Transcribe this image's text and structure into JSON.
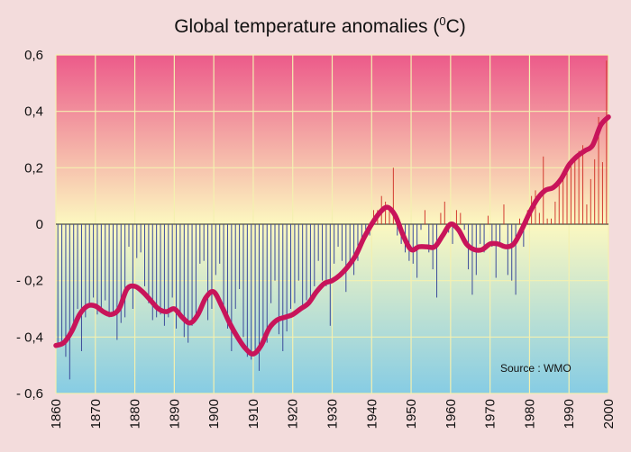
{
  "chart_data": {
    "type": "bar",
    "title": "Global temperature anomalies (",
    "title_superscript": "0",
    "title_suffix": "C)",
    "xlabel": "",
    "ylabel": "",
    "source_label": "Source : WMO",
    "xlim": [
      1860,
      2000
    ],
    "ylim": [
      -0.6,
      0.6
    ],
    "x_ticks": [
      1860,
      1870,
      1880,
      1890,
      1900,
      1910,
      1920,
      1930,
      1940,
      1950,
      1960,
      1970,
      1980,
      1990,
      2000
    ],
    "y_ticks": [
      "0,6",
      "0,4",
      "0,2",
      "0",
      "- 0,2",
      "- 0,4",
      "- 0,6"
    ],
    "y_tick_values": [
      0.6,
      0.4,
      0.2,
      0,
      -0.2,
      -0.4,
      -0.6
    ],
    "grid": true,
    "colors": {
      "bar_negative": "#3b4a9a",
      "bar_positive": "#d23a30",
      "smoothed_line": "#c8145a",
      "grid": "#f4f0b0",
      "zero_line": "#222222",
      "bg_top": "#ec5a8a",
      "bg_zero": "#fcf8c0",
      "bg_bottom": "#86cce4"
    },
    "series": [
      {
        "kind": "bars",
        "x": [
          1860,
          1861,
          1862,
          1863,
          1864,
          1865,
          1866,
          1867,
          1868,
          1869,
          1870,
          1871,
          1872,
          1873,
          1874,
          1875,
          1876,
          1877,
          1878,
          1879,
          1880,
          1881,
          1882,
          1883,
          1884,
          1885,
          1886,
          1887,
          1888,
          1889,
          1890,
          1891,
          1892,
          1893,
          1894,
          1895,
          1896,
          1897,
          1898,
          1899,
          1900,
          1901,
          1902,
          1903,
          1904,
          1905,
          1906,
          1907,
          1908,
          1909,
          1910,
          1911,
          1912,
          1913,
          1914,
          1915,
          1916,
          1917,
          1918,
          1919,
          1920,
          1921,
          1922,
          1923,
          1924,
          1925,
          1926,
          1927,
          1928,
          1929,
          1930,
          1931,
          1932,
          1933,
          1934,
          1935,
          1936,
          1937,
          1938,
          1939,
          1940,
          1941,
          1942,
          1943,
          1944,
          1945,
          1946,
          1947,
          1948,
          1949,
          1950,
          1951,
          1952,
          1953,
          1954,
          1955,
          1956,
          1957,
          1958,
          1959,
          1960,
          1961,
          1962,
          1963,
          1964,
          1965,
          1966,
          1967,
          1968,
          1969,
          1970,
          1971,
          1972,
          1973,
          1974,
          1975,
          1976,
          1977,
          1978,
          1979,
          1980,
          1981,
          1982,
          1983,
          1984,
          1985,
          1986,
          1987,
          1988,
          1989,
          1990,
          1991,
          1992,
          1993,
          1994,
          1995,
          1996,
          1997,
          1998,
          1999
        ],
        "values": [
          -0.42,
          -0.43,
          -0.47,
          -0.55,
          -0.38,
          -0.3,
          -0.45,
          -0.33,
          -0.28,
          -0.26,
          -0.32,
          -0.3,
          -0.27,
          -0.33,
          -0.31,
          -0.41,
          -0.35,
          -0.33,
          -0.08,
          -0.3,
          -0.12,
          -0.1,
          -0.22,
          -0.28,
          -0.34,
          -0.33,
          -0.32,
          -0.36,
          -0.33,
          -0.26,
          -0.37,
          -0.33,
          -0.4,
          -0.42,
          -0.36,
          -0.32,
          -0.14,
          -0.13,
          -0.34,
          -0.3,
          -0.18,
          -0.14,
          -0.3,
          -0.37,
          -0.45,
          -0.3,
          -0.23,
          -0.4,
          -0.47,
          -0.48,
          -0.45,
          -0.52,
          -0.4,
          -0.42,
          -0.28,
          -0.2,
          -0.39,
          -0.45,
          -0.38,
          -0.3,
          -0.28,
          -0.2,
          -0.29,
          -0.27,
          -0.27,
          -0.22,
          -0.13,
          -0.2,
          -0.22,
          -0.36,
          -0.14,
          -0.08,
          -0.13,
          -0.24,
          -0.13,
          -0.18,
          -0.13,
          -0.07,
          -0.02,
          -0.04,
          0.05,
          0.05,
          0.1,
          0.08,
          0.06,
          0.2,
          -0.04,
          -0.07,
          -0.1,
          -0.13,
          -0.14,
          -0.19,
          -0.02,
          0.05,
          -0.1,
          -0.16,
          -0.26,
          0.04,
          0.08,
          -0.03,
          -0.07,
          0.05,
          0.04,
          -0.02,
          -0.16,
          -0.25,
          -0.18,
          -0.07,
          -0.1,
          0.03,
          -0.08,
          -0.19,
          -0.08,
          0.07,
          -0.18,
          -0.2,
          -0.25,
          0.02,
          -0.08,
          0.05,
          0.1,
          0.12,
          0.04,
          0.24,
          0.02,
          0.02,
          0.08,
          0.14,
          0.17,
          0.21,
          0.22,
          0.23,
          0.26,
          0.28,
          0.07,
          0.16,
          0.23,
          0.38,
          0.22,
          0.58
        ]
      },
      {
        "kind": "smoothed",
        "x": [
          1860,
          1862,
          1864,
          1866,
          1868,
          1870,
          1872,
          1874,
          1876,
          1878,
          1880,
          1882,
          1884,
          1886,
          1888,
          1890,
          1892,
          1894,
          1896,
          1898,
          1900,
          1902,
          1904,
          1906,
          1908,
          1910,
          1912,
          1914,
          1916,
          1918,
          1920,
          1922,
          1924,
          1926,
          1928,
          1930,
          1932,
          1934,
          1936,
          1938,
          1940,
          1942,
          1944,
          1946,
          1948,
          1950,
          1952,
          1954,
          1956,
          1958,
          1960,
          1962,
          1964,
          1966,
          1968,
          1970,
          1972,
          1974,
          1976,
          1978,
          1980,
          1982,
          1984,
          1986,
          1988,
          1990,
          1992,
          1994,
          1996,
          1998,
          2000
        ],
        "values": [
          -0.43,
          -0.42,
          -0.38,
          -0.32,
          -0.29,
          -0.29,
          -0.31,
          -0.32,
          -0.3,
          -0.23,
          -0.22,
          -0.24,
          -0.27,
          -0.3,
          -0.31,
          -0.3,
          -0.33,
          -0.35,
          -0.32,
          -0.26,
          -0.24,
          -0.29,
          -0.35,
          -0.4,
          -0.44,
          -0.46,
          -0.43,
          -0.37,
          -0.34,
          -0.33,
          -0.32,
          -0.3,
          -0.28,
          -0.24,
          -0.21,
          -0.2,
          -0.18,
          -0.15,
          -0.11,
          -0.05,
          0.0,
          0.04,
          0.06,
          0.03,
          -0.04,
          -0.09,
          -0.08,
          -0.08,
          -0.08,
          -0.04,
          0.0,
          -0.02,
          -0.07,
          -0.09,
          -0.09,
          -0.07,
          -0.07,
          -0.08,
          -0.07,
          -0.02,
          0.04,
          0.09,
          0.12,
          0.13,
          0.16,
          0.21,
          0.24,
          0.26,
          0.28,
          0.35,
          0.38
        ]
      }
    ]
  }
}
